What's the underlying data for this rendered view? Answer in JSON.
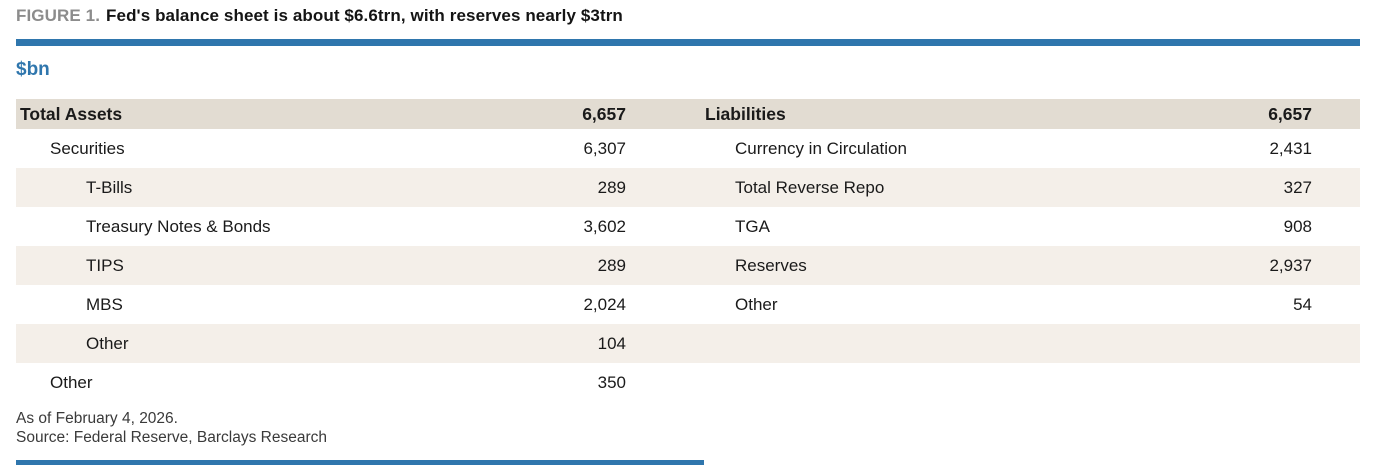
{
  "figure": {
    "label": "FIGURE 1.",
    "title": "Fed's balance sheet is about $6.6trn, with reserves nearly $3trn",
    "units": "$bn"
  },
  "colors": {
    "accent_blue": "#2f76ad",
    "header_band_bg": "#e2dcd2",
    "stripe_bg": "#f4efe9",
    "figure_label_gray": "#8c8c8c",
    "text": "#1a1a1a"
  },
  "chart_data": {
    "type": "table",
    "title": "Fed's balance sheet is about $6.6trn, with reserves nearly $3trn",
    "units": "$bn",
    "assets": {
      "header": {
        "label": "Total Assets",
        "value": "6,657"
      },
      "rows": [
        {
          "label": "Securities",
          "value": "6,307"
        },
        {
          "label": "T-Bills",
          "value": "289"
        },
        {
          "label": "Treasury Notes & Bonds",
          "value": "3,602"
        },
        {
          "label": "TIPS",
          "value": "289"
        },
        {
          "label": "MBS",
          "value": "2,024"
        },
        {
          "label": "Other",
          "value": "104"
        },
        {
          "label": "Other",
          "value": "350"
        }
      ]
    },
    "liabilities": {
      "header": {
        "label": "Liabilities",
        "value": "6,657"
      },
      "rows": [
        {
          "label": "Currency in Circulation",
          "value": "2,431"
        },
        {
          "label": "Total Reverse Repo",
          "value": "327"
        },
        {
          "label": "TGA",
          "value": "908"
        },
        {
          "label": "Reserves",
          "value": "2,937"
        },
        {
          "label": "Other",
          "value": "54"
        },
        {
          "label": "",
          "value": ""
        },
        {
          "label": "",
          "value": ""
        }
      ]
    }
  },
  "footnotes": {
    "as_of": "As of February 4, 2026.",
    "source": "Source: Federal Reserve, Barclays Research"
  }
}
